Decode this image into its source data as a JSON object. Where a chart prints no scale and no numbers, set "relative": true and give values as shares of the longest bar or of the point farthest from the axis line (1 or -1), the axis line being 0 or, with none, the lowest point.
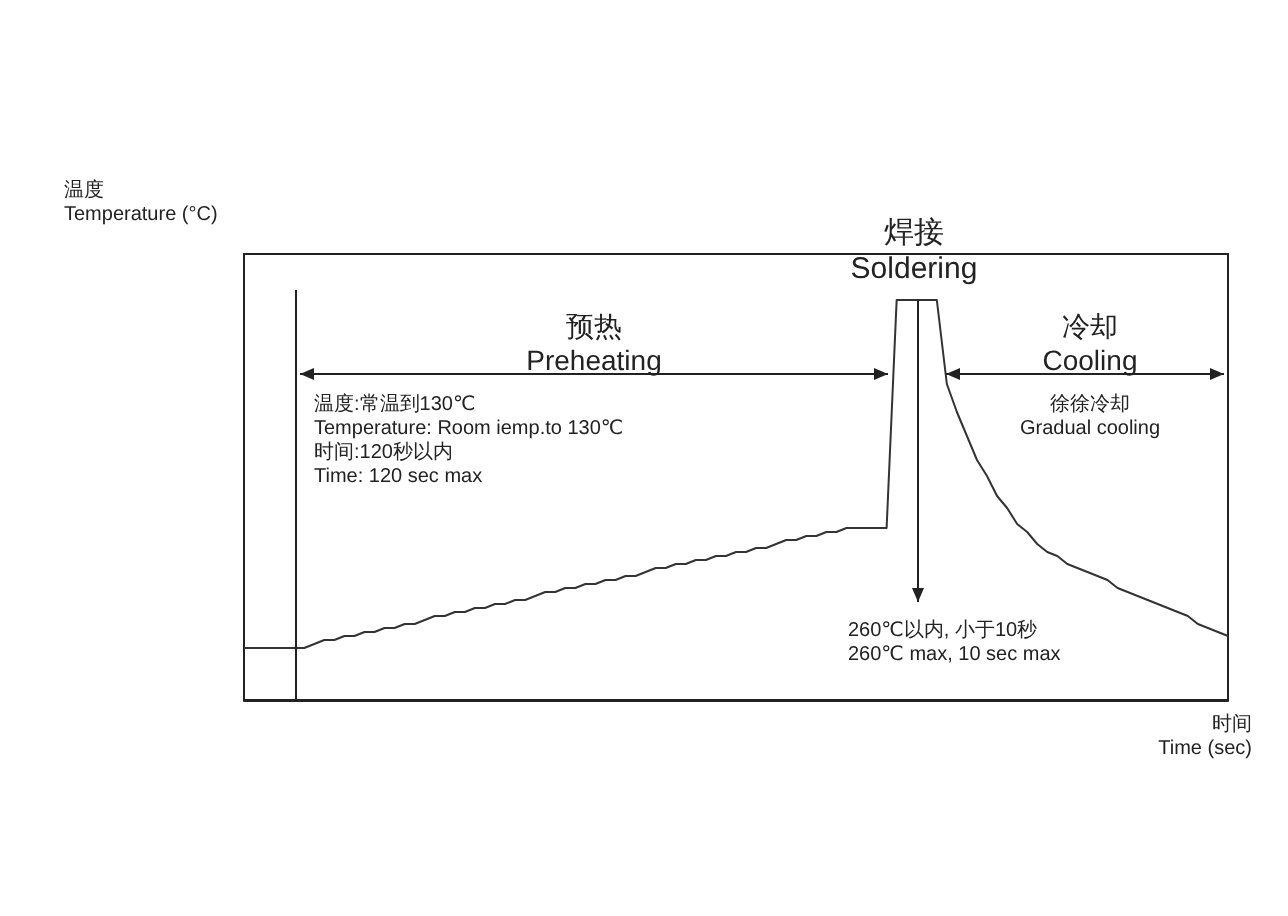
{
  "chart_data": {
    "type": "line",
    "relative": true,
    "color": "#333333",
    "ylabel": "温度\nTemperature (°C)",
    "xlabel": "时间\nTime (sec)",
    "categories": [
      null,
      null,
      null,
      null,
      null,
      null,
      null,
      null,
      null,
      null,
      null,
      null,
      null,
      null,
      null,
      null,
      null,
      null,
      null,
      null,
      null,
      null,
      null,
      null,
      null,
      null,
      null,
      null,
      null,
      null,
      null,
      null,
      null,
      null,
      null,
      null,
      null,
      null,
      null,
      null,
      null,
      null,
      null,
      null,
      null,
      null,
      null,
      null,
      null,
      null,
      null,
      null,
      null,
      null,
      null,
      null,
      null,
      null,
      null,
      null,
      null,
      null,
      null,
      null,
      null,
      null,
      null,
      null,
      null,
      null,
      null,
      null,
      null,
      null,
      null,
      null,
      null,
      null,
      null,
      null,
      null,
      null,
      null,
      null,
      null,
      null,
      null,
      null,
      null,
      null,
      null,
      null,
      null,
      null,
      null,
      null,
      null,
      null,
      null
    ],
    "values": [
      0.13,
      0.13,
      0.13,
      0.13,
      0.13,
      0.13,
      0.13,
      0.14,
      0.15,
      0.15,
      0.16,
      0.16,
      0.17,
      0.17,
      0.18,
      0.18,
      0.19,
      0.19,
      0.2,
      0.21,
      0.21,
      0.22,
      0.22,
      0.23,
      0.23,
      0.24,
      0.24,
      0.25,
      0.25,
      0.26,
      0.27,
      0.27,
      0.28,
      0.28,
      0.29,
      0.29,
      0.3,
      0.3,
      0.31,
      0.31,
      0.32,
      0.33,
      0.33,
      0.34,
      0.34,
      0.35,
      0.35,
      0.36,
      0.36,
      0.37,
      0.37,
      0.38,
      0.38,
      0.39,
      0.4,
      0.4,
      0.41,
      0.41,
      0.42,
      0.42,
      0.43,
      0.43,
      0.43,
      0.43,
      0.43,
      1,
      1,
      1,
      1,
      1,
      0.79,
      0.72,
      0.66,
      0.6,
      0.56,
      0.51,
      0.48,
      0.44,
      0.42,
      0.39,
      0.37,
      0.36,
      0.34,
      0.33,
      0.32,
      0.31,
      0.3,
      0.28,
      0.27,
      0.26,
      0.25,
      0.24,
      0.23,
      0.22,
      0.21,
      0.19,
      0.18,
      0.17,
      0.16
    ],
    "annotations": [
      "预热\nPreheating",
      "焊接\nSoldering",
      "冷却\nCooling",
      "温度:常温到130℃\nTemperature: Room iemp.to 130℃\n时间:120秒以内\nTime: 120 sec max",
      "徐徐冷却\nGradual cooling",
      "260℃以内, 小于10秒\n260℃ max, 10 sec max"
    ]
  }
}
